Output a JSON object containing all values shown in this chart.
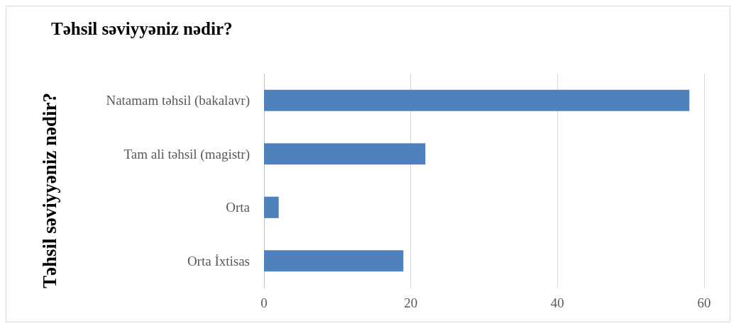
{
  "chart_data": {
    "type": "bar",
    "orientation": "horizontal",
    "title": "Təhsil səviyyəniz nədir?",
    "ylabel": "Təhsil səviyyəniz nədir?",
    "categories": [
      "Natamam təhsil (bakalavr)",
      "Tam ali təhsil (magistr)",
      "Orta",
      "Orta İxtisas"
    ],
    "values": [
      58,
      22,
      2,
      19
    ],
    "color": "#4f81bd",
    "xlim": [
      0,
      60
    ],
    "xticks": [
      0,
      20,
      40,
      60
    ],
    "grid": "x"
  }
}
